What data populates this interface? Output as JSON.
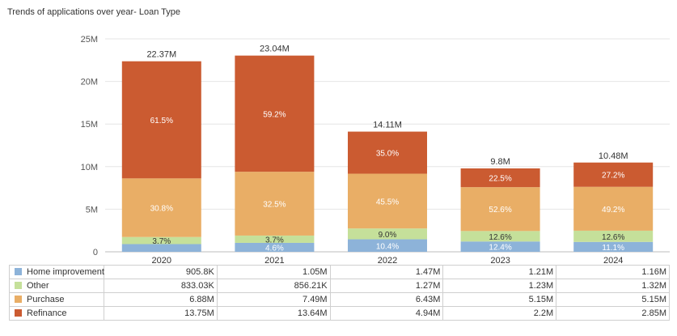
{
  "chart_data": {
    "type": "stacked-bar",
    "title": "Trends of applications over year- Loan Type",
    "categories": [
      "2020",
      "2021",
      "2022",
      "2023",
      "2024"
    ],
    "y_ticks": [
      "0",
      "5M",
      "10M",
      "15M",
      "20M",
      "25M"
    ],
    "ylim": [
      0,
      25000000
    ],
    "totals": [
      22370000,
      23040000,
      14110000,
      9800000,
      10480000
    ],
    "total_labels": [
      "22.37M",
      "23.04M",
      "14.11M",
      "9.8M",
      "10.48M"
    ],
    "series": [
      {
        "name": "Home improvement",
        "color": "#8db3d9",
        "values": [
          905800,
          1050000,
          1470000,
          1210000,
          1160000
        ],
        "value_labels": [
          "905.8K",
          "1.05M",
          "1.47M",
          "1.21M",
          "1.16M"
        ],
        "pct_labels": [
          "",
          "4.6%",
          "10.4%",
          "12.4%",
          "11.1%"
        ]
      },
      {
        "name": "Other",
        "color": "#c5e09a",
        "values": [
          833030,
          856210,
          1270000,
          1230000,
          1320000
        ],
        "value_labels": [
          "833.03K",
          "856.21K",
          "1.27M",
          "1.23M",
          "1.32M"
        ],
        "pct_labels": [
          "3.7%",
          "3.7%",
          "9.0%",
          "12.6%",
          "12.6%"
        ]
      },
      {
        "name": "Purchase",
        "color": "#e9ae66",
        "values": [
          6880000,
          7490000,
          6430000,
          5150000,
          5150000
        ],
        "value_labels": [
          "6.88M",
          "7.49M",
          "6.43M",
          "5.15M",
          "5.15M"
        ],
        "pct_labels": [
          "30.8%",
          "32.5%",
          "45.5%",
          "52.6%",
          "49.2%"
        ]
      },
      {
        "name": "Refinance",
        "color": "#cb5b31",
        "values": [
          13750000,
          13640000,
          4940000,
          2200000,
          2850000
        ],
        "value_labels": [
          "13.75M",
          "13.64M",
          "4.94M",
          "2.2M",
          "2.85M"
        ],
        "pct_labels": [
          "61.5%",
          "59.2%",
          "35.0%",
          "22.5%",
          "27.2%"
        ]
      }
    ]
  }
}
